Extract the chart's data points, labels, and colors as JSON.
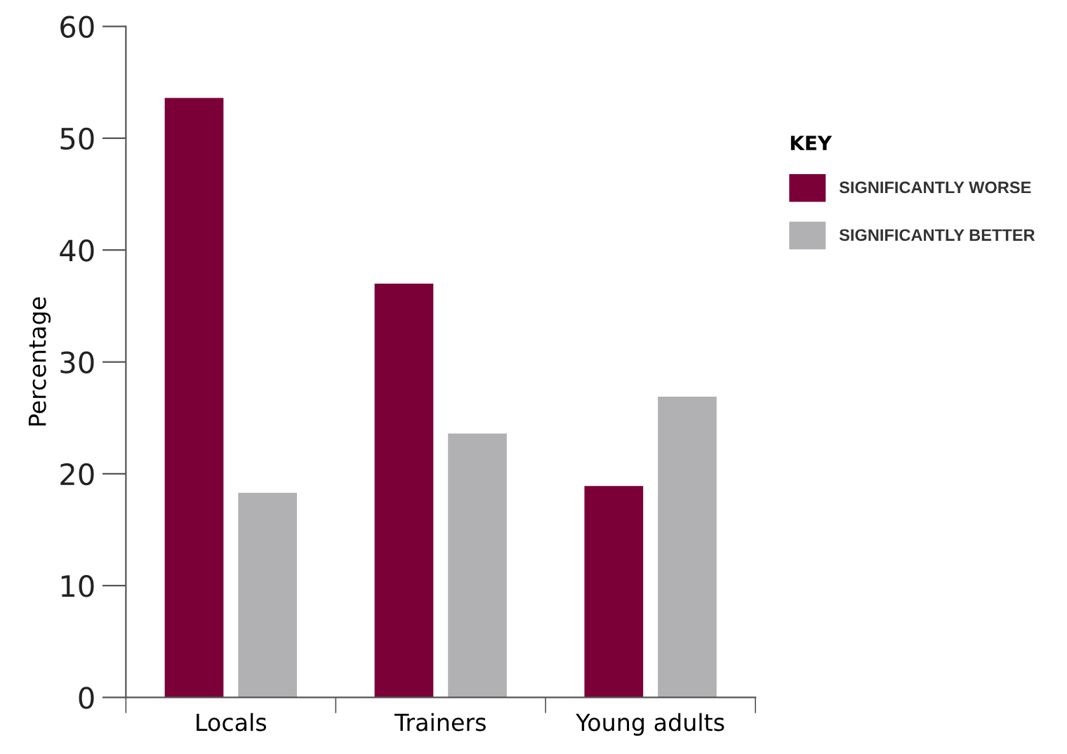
{
  "chart_data": {
    "type": "bar",
    "ylabel": "Percentage",
    "legend_title": "KEY",
    "categories": [
      "Locals",
      "Trainers",
      "Young adults"
    ],
    "series": [
      {
        "name": "SIGNIFICANTLY WORSE",
        "color": "#7b0038",
        "values": [
          53.6,
          37.0,
          18.9
        ]
      },
      {
        "name": "SIGNIFICANTLY BETTER",
        "color": "#b1b1b3",
        "values": [
          18.3,
          23.6,
          26.9
        ]
      }
    ],
    "ylim": [
      0,
      60
    ],
    "yticks": [
      0,
      10,
      20,
      30,
      40,
      50,
      60
    ],
    "grid": false,
    "legend": "right"
  }
}
